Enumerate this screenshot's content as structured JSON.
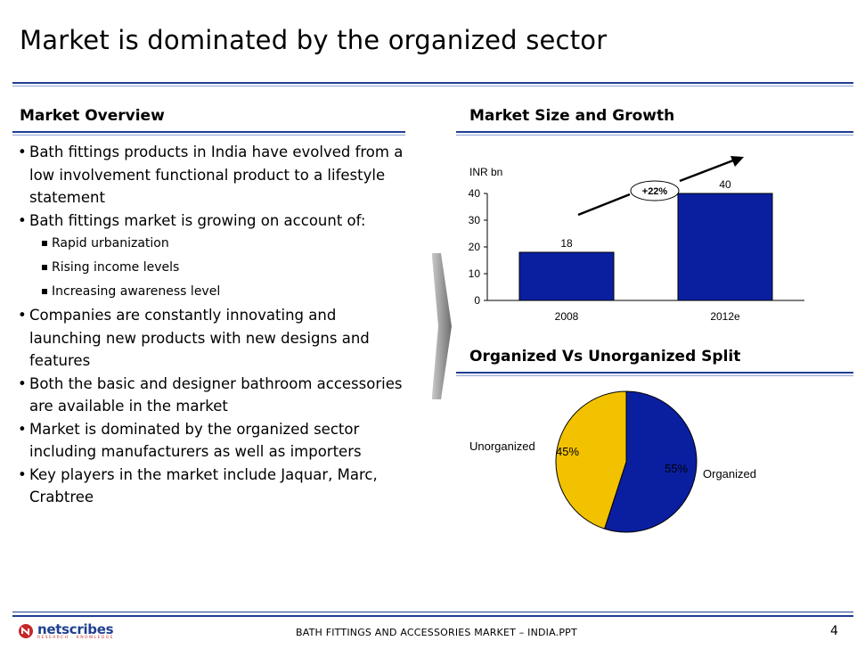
{
  "title": "Market is dominated by the organized sector",
  "overview": {
    "heading": "Market Overview",
    "bullets": [
      "Bath fittings products in India have evolved from a low involvement functional product to a lifestyle statement",
      "Bath fittings market is growing on account of:"
    ],
    "sub_bullets": [
      "Rapid urbanization",
      "Rising income levels",
      "Increasing awareness level"
    ],
    "bullets_after": [
      "Companies are constantly innovating and launching new products with new designs and features",
      "Both the basic and designer bathroom accessories are available in the market",
      "Market is dominated by the organized sector including manufacturers as well as importers",
      "Key players in the market include Jaquar, Marc, Crabtree"
    ]
  },
  "market_size": {
    "heading": "Market Size and Growth",
    "growth_label": "+22%"
  },
  "split": {
    "heading": "Organized Vs Unorganized Split"
  },
  "chart_data": [
    {
      "type": "bar",
      "categories": [
        "2008",
        "2012e"
      ],
      "values": [
        18,
        40
      ],
      "ylabel": "INR bn",
      "ylim": [
        0,
        40
      ],
      "yticks": [
        0,
        10,
        20,
        30,
        40
      ],
      "color": "#0a1fa0",
      "annotation": "+22%"
    },
    {
      "type": "pie",
      "labels": [
        "Organized",
        "Unorganized"
      ],
      "values": [
        55,
        45
      ],
      "value_labels": [
        "55%",
        "45%"
      ],
      "colors": [
        "#0a1fa0",
        "#f2c200"
      ]
    }
  ],
  "footer": {
    "text": "BATH FITTINGS AND ACCESSORIES MARKET – INDIA.PPT",
    "page": "4",
    "logo": "netscribes",
    "logo_tagline": "RESEARCH · KNOWLEDGE"
  }
}
